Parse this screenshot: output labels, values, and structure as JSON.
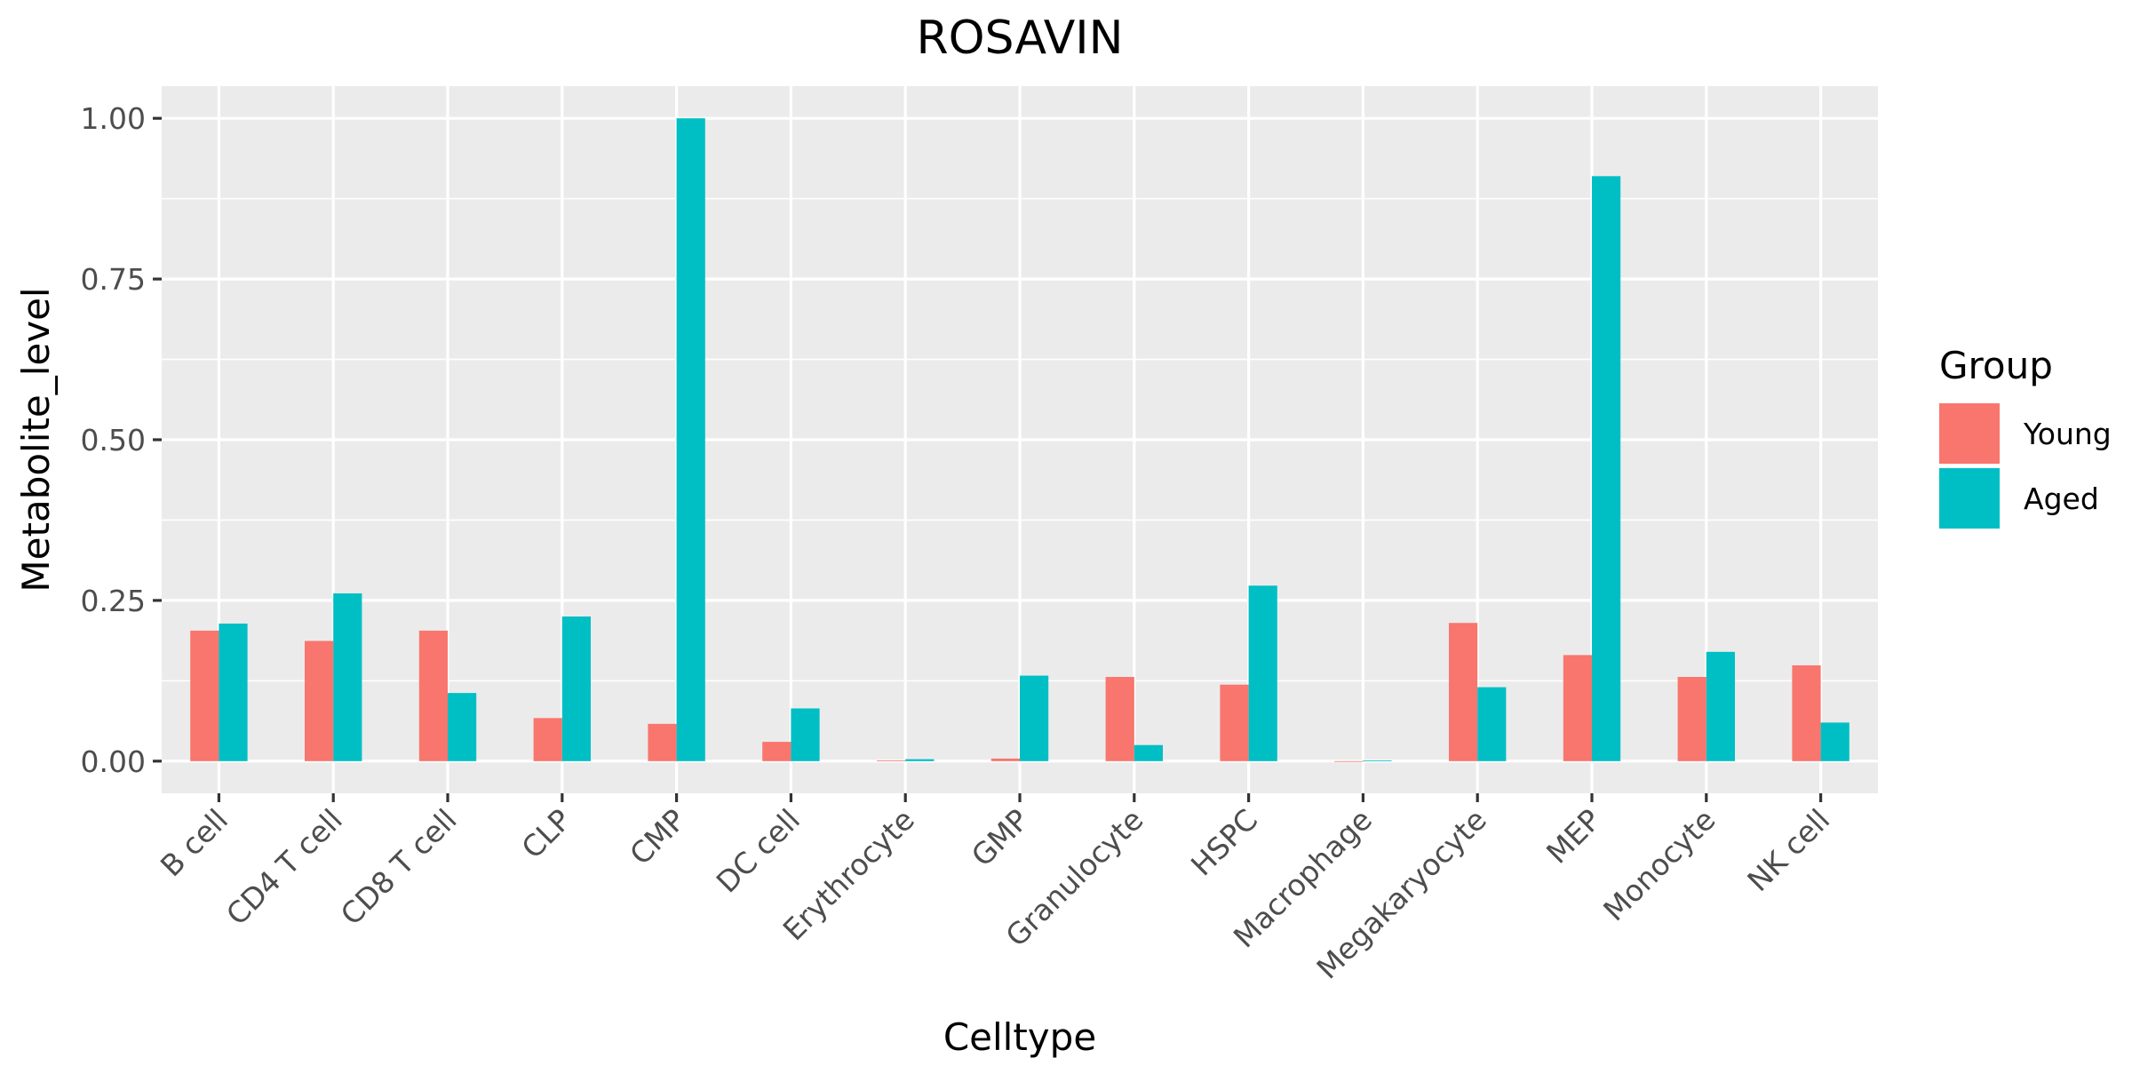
{
  "chart_data": {
    "type": "bar",
    "title": "ROSAVIN",
    "xlabel": "Celltype",
    "ylabel": "Metabolite_level",
    "categories": [
      "B cell",
      "CD4 T cell",
      "CD8 T cell",
      "CLP",
      "CMP",
      "DC cell",
      "Erythrocyte",
      "GMP",
      "Granulocyte",
      "HSPC",
      "Macrophage",
      "Megakaryocyte",
      "MEP",
      "Monocyte",
      "NK cell"
    ],
    "series": [
      {
        "name": "Young",
        "color": "#F8766D",
        "values": [
          0.203,
          0.187,
          0.203,
          0.067,
          0.058,
          0.03,
          0.001,
          0.004,
          0.131,
          0.119,
          0.0,
          0.215,
          0.165,
          0.131,
          0.149
        ]
      },
      {
        "name": "Aged",
        "color": "#00BFC4",
        "values": [
          0.214,
          0.261,
          0.106,
          0.225,
          1.0,
          0.082,
          0.003,
          0.133,
          0.025,
          0.273,
          0.001,
          0.115,
          0.91,
          0.17,
          0.06
        ]
      }
    ],
    "ylim": [
      -0.05,
      1.05
    ],
    "yticks": [
      0,
      0.25,
      0.5,
      0.75,
      1.0
    ],
    "ytick_labels": [
      "0.00",
      "0.25",
      "0.50",
      "0.75",
      "1.00"
    ],
    "grid": true,
    "panel_background": "#EBEBEB",
    "legend": {
      "title": "Group",
      "position": "right"
    }
  }
}
